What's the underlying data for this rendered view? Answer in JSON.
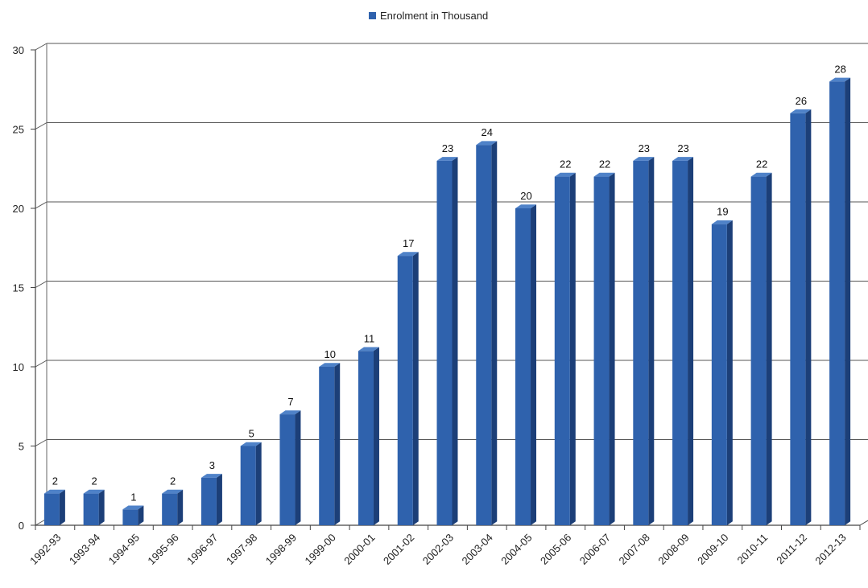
{
  "chart_data": {
    "type": "bar",
    "title": "",
    "xlabel": "",
    "ylabel": "",
    "categories": [
      "1992-93",
      "1993-94",
      "1994-95",
      "1995-96",
      "1996-97",
      "1997-98",
      "1998-99",
      "1999-00",
      "2000-01",
      "2001-02",
      "2002-03",
      "2003-04",
      "2004-05",
      "2005-06",
      "2006-07",
      "2007-08",
      "2008-09",
      "2009-10",
      "2010-11",
      "2011-12",
      "2012-13"
    ],
    "series": [
      {
        "name": "Enrolment in Thousand",
        "values": [
          2,
          2,
          1,
          2,
          3,
          5,
          7,
          10,
          11,
          17,
          23,
          24,
          20,
          22,
          22,
          23,
          23,
          19,
          22,
          26,
          28
        ],
        "color": "#2f62ad"
      }
    ],
    "ylim": [
      0,
      30
    ],
    "yticks": [
      0,
      5,
      10,
      15,
      20,
      25,
      30
    ],
    "grid": true,
    "legend": "top-center",
    "style": "3d"
  }
}
